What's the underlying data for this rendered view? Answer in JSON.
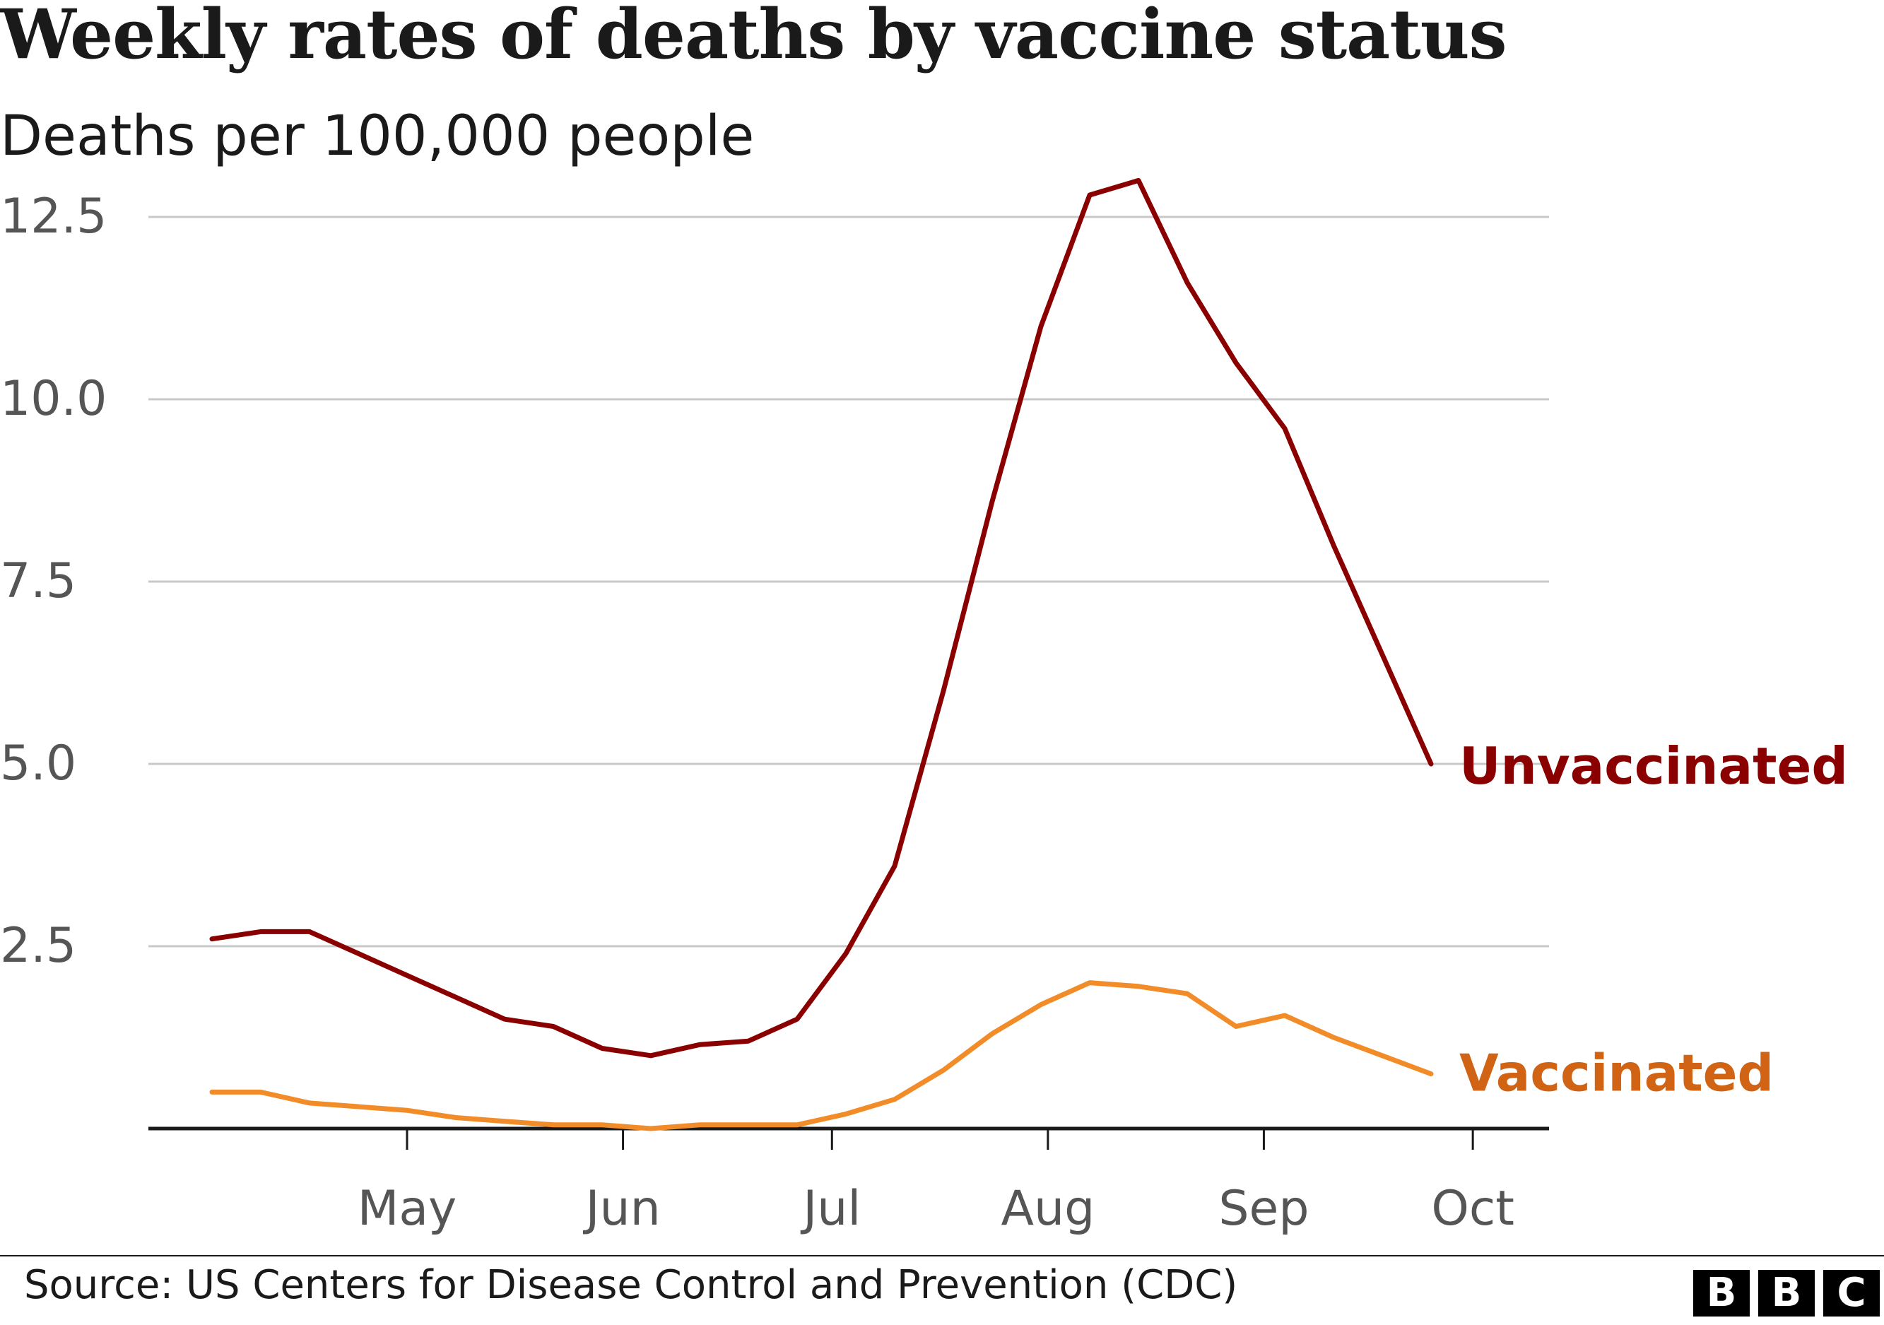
{
  "header": {
    "title": "Weekly rates of deaths by vaccine status",
    "subtitle": "Deaths per 100,000 people"
  },
  "footer": {
    "source": "Source: US Centers for Disease Control and Prevention (CDC)",
    "logo_letters": [
      "B",
      "B",
      "C"
    ]
  },
  "colors": {
    "unvaccinated": "#8a0000",
    "vaccinated": "#f28c28",
    "vaccinated_label": "#d06414",
    "grid": "#c8c8c8",
    "axis": "#1a1a1a",
    "tick_text": "#555555"
  },
  "chart_data": {
    "type": "line",
    "title": "Weekly rates of deaths by vaccine status",
    "ylabel": "Deaths per 100,000 people",
    "xlabel": "",
    "ylim": [
      0,
      13
    ],
    "yticks": [
      2.5,
      5.0,
      7.5,
      10.0,
      12.5
    ],
    "ytick_labels": [
      "2.5",
      "5.0",
      "7.5",
      "10.0",
      "12.5"
    ],
    "x_months": [
      "May",
      "Jun",
      "Jul",
      "Aug",
      "Sep",
      "Oct"
    ],
    "x_month_starts": [
      "2021-05-01",
      "2021-06-01",
      "2021-07-01",
      "2021-08-01",
      "2021-09-01",
      "2021-10-01"
    ],
    "grid": true,
    "legend": "inline labels at line ends",
    "x": [
      "2021-04-03",
      "2021-04-10",
      "2021-04-17",
      "2021-04-24",
      "2021-05-01",
      "2021-05-08",
      "2021-05-15",
      "2021-05-22",
      "2021-05-29",
      "2021-06-05",
      "2021-06-12",
      "2021-06-19",
      "2021-06-26",
      "2021-07-03",
      "2021-07-10",
      "2021-07-17",
      "2021-07-24",
      "2021-07-31",
      "2021-08-07",
      "2021-08-14",
      "2021-08-21",
      "2021-08-28",
      "2021-09-04",
      "2021-09-11",
      "2021-09-18",
      "2021-09-25",
      "2021-10-02"
    ],
    "series": [
      {
        "name": "Unvaccinated",
        "values": [
          2.6,
          2.7,
          2.7,
          2.4,
          2.1,
          1.8,
          1.5,
          1.4,
          1.1,
          1.0,
          1.15,
          1.2,
          1.5,
          2.4,
          3.6,
          6.0,
          8.6,
          11.0,
          12.8,
          13.0,
          11.6,
          10.5,
          9.6,
          8.0,
          6.5,
          5.0,
          null
        ]
      },
      {
        "name": "Vaccinated",
        "values": [
          0.5,
          0.5,
          0.35,
          0.3,
          0.25,
          0.15,
          0.1,
          0.05,
          0.05,
          0.0,
          0.05,
          0.05,
          0.05,
          0.2,
          0.4,
          0.8,
          1.3,
          1.7,
          2.0,
          1.95,
          1.85,
          1.4,
          1.55,
          1.25,
          1.0,
          0.75,
          null
        ]
      }
    ]
  }
}
